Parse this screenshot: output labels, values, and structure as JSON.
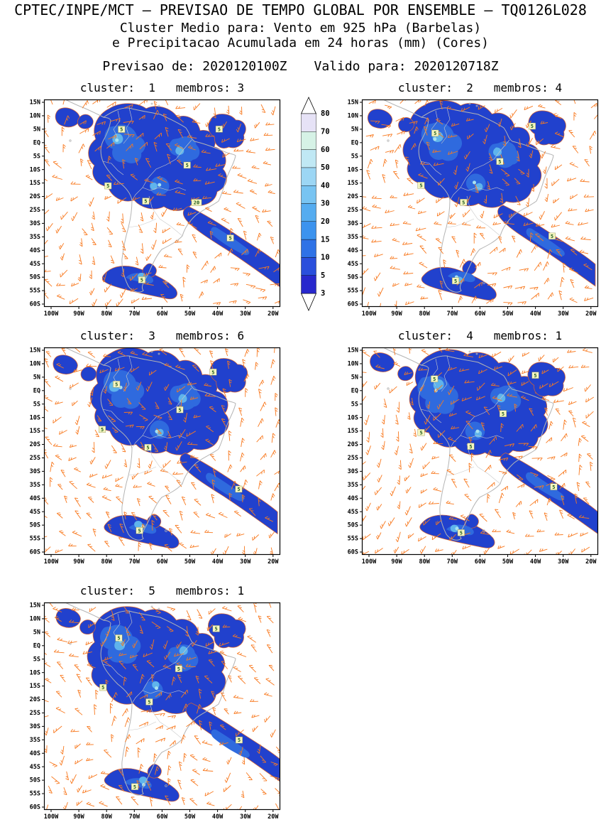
{
  "header": {
    "title": "CPTEC/INPE/MCT — PREVISAO DE TEMPO GLOBAL POR ENSEMBLE — TQ0126L028",
    "subtitle1": "Cluster Medio para: Vento em 925 hPa (Barbelas)",
    "subtitle2": "e Precipitacao Acumulada em 24 horas (mm) (Cores)",
    "init": "Previsao de: 2020120100Z",
    "valid": "Valido para: 2020120718Z"
  },
  "panels": [
    {
      "cluster": 1,
      "membros": 3,
      "title": "cluster:  1   membros: 3"
    },
    {
      "cluster": 2,
      "membros": 4,
      "title": "cluster:  2   membros: 4"
    },
    {
      "cluster": 3,
      "membros": 6,
      "title": "cluster:  3   membros: 6"
    },
    {
      "cluster": 4,
      "membros": 1,
      "title": "cluster:  4   membros: 1"
    },
    {
      "cluster": 5,
      "membros": 1,
      "title": "cluster:  5   membros: 1"
    }
  ],
  "axes": {
    "lat_labels": [
      "15N",
      "10N",
      "5N",
      "EQ",
      "5S",
      "10S",
      "15S",
      "20S",
      "25S",
      "30S",
      "35S",
      "40S",
      "45S",
      "50S",
      "55S",
      "60S"
    ],
    "lon_labels": [
      "100W",
      "90W",
      "80W",
      "70W",
      "60W",
      "50W",
      "40W",
      "30W",
      "20W"
    ]
  },
  "colorbar": {
    "levels": [
      3,
      5,
      10,
      15,
      20,
      30,
      40,
      50,
      60,
      70,
      80
    ],
    "colors": [
      "#2828cd",
      "#2a4fdc",
      "#2f72e6",
      "#3c93ee",
      "#55acf0",
      "#78c4f2",
      "#9cd6f4",
      "#c0e8f4",
      "#d6f2e6",
      "#e6e2f6"
    ]
  },
  "map": {
    "contour_labels": [
      "5",
      "20"
    ],
    "colors": {
      "wind_barb": "#f8791f",
      "coastline": "#b4b4b4",
      "border": "#c9c9c9",
      "precip_outline": "#e06428",
      "precip_dark": "#2141cd",
      "precip_mid": "#2f6ade",
      "precip_light": "#5fb4ec",
      "precip_core": "#a8e2f0",
      "label_bg": "#f6f6c0",
      "label_text": "#1e5a1e"
    }
  },
  "chart_data": {
    "type": "heatmap",
    "title": "CPTEC/INPE/MCT — PREVISAO DE TEMPO GLOBAL POR ENSEMBLE — TQ0126L028",
    "subtitle": "Cluster Medio para: Vento em 925 hPa (Barbelas) e Precipitacao Acumulada em 24 horas (mm) (Cores)",
    "init_time": "2020120100Z",
    "valid_time": "2020120718Z",
    "variables": [
      "Vento em 925 hPa (Barbelas)",
      "Precipitacao Acumulada em 24 horas (mm)"
    ],
    "panels": [
      {
        "cluster": 1,
        "membros": 3
      },
      {
        "cluster": 2,
        "membros": 4
      },
      {
        "cluster": 3,
        "membros": 6
      },
      {
        "cluster": 4,
        "membros": 1
      },
      {
        "cluster": 5,
        "membros": 1
      }
    ],
    "x_axis": {
      "label": "longitude",
      "ticks": [
        "100W",
        "90W",
        "80W",
        "70W",
        "60W",
        "50W",
        "40W",
        "30W",
        "20W"
      ]
    },
    "y_axis": {
      "label": "latitude",
      "ticks": [
        "15N",
        "10N",
        "5N",
        "EQ",
        "5S",
        "10S",
        "15S",
        "20S",
        "25S",
        "30S",
        "35S",
        "40S",
        "45S",
        "50S",
        "55S",
        "60S"
      ]
    },
    "colorbar_levels_mm": [
      3,
      5,
      10,
      15,
      20,
      30,
      40,
      50,
      60,
      70,
      80
    ],
    "legend_position": "vertical, between top two panels",
    "grid": false
  }
}
